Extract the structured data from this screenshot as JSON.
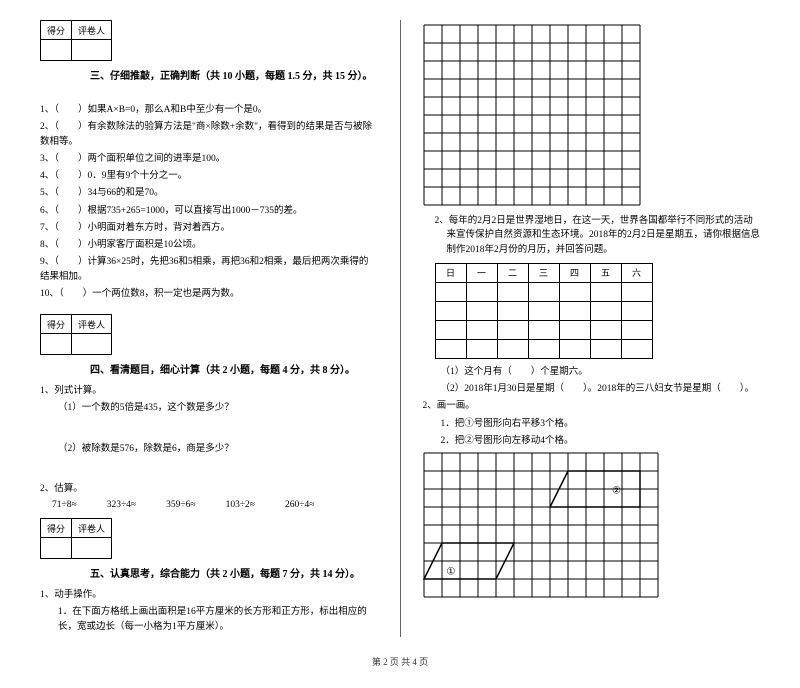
{
  "left": {
    "scoreHeaders": [
      "得分",
      "评卷人"
    ],
    "section3": {
      "title": "三、仔细推敲，正确判断（共 10 小题，每题 1.5 分，共 15 分）。",
      "items": [
        "1、（　　）如果A×B=0，那么A和B中至少有一个是0。",
        "2、（　　）有余数除法的验算方法是\"商×除数+余数\"，看得到的结果是否与被除数相等。",
        "3、（　　）两个面积单位之间的进率是100。",
        "4、（　　）0．9里有9个十分之一。",
        "5、（　　）34与66的和是70。",
        "6、（　　）根据735+265=1000，可以直接写出1000－735的差。",
        "7、（　　）小明面对着东方时，背对着西方。",
        "8、（　　）小明家客厅面积是10公顷。",
        "9、（　　）计算36×25时，先把36和5相乘，再把36和2相乘，最后把两次乘得的结果相加。",
        "10、（　　）一个两位数8，积一定也是两为数。"
      ]
    },
    "section4": {
      "title": "四、看清题目，细心计算（共 2 小题，每题 4 分，共 8 分）。",
      "q1": "1、列式计算。",
      "q1a": "（1）一个数的5倍是435，这个数是多少？",
      "q1b": "（2）被除数是576，除数是6，商是多少？",
      "q2": "2、估算。",
      "est": [
        "71÷8≈",
        "323÷4≈",
        "359÷6≈",
        "103÷2≈",
        "260÷4≈"
      ]
    },
    "section5": {
      "title": "五、认真思考，综合能力（共 2 小题，每题 7 分，共 14 分）。",
      "q1": "1、动手操作。",
      "q1a": "1．在下面方格纸上画出面积是16平方厘米的长方形和正方形，标出相应的长，宽或边长（每一小格为1平方厘米）。"
    }
  },
  "right": {
    "grid1": {
      "cols": 12,
      "rows": 10,
      "cell": 18,
      "stroke": "#000000"
    },
    "q2text": "2、每年的2月2日是世界湿地日，在这一天，世界各国都举行不同形式的活动来宣传保护自然资源和生态环境。2018年的2月2日是星期五，请你根据信息制作2018年2月份的月历，并回答问题。",
    "calHeaders": [
      "日",
      "一",
      "二",
      "三",
      "四",
      "五",
      "六"
    ],
    "sub1": "（1）这个月有（　　）个星期六。",
    "sub2": "（2）2018年1月30日是星期（　　）。2018年的三八妇女节是星期（　　）。",
    "q2b": "2、画一画。",
    "q2b1": "1．把①号图形向右平移3个格。",
    "q2b2": "2．把②号图形向左移动4个格。",
    "grid2": {
      "cols": 13,
      "rows": 8,
      "cell": 18,
      "stroke": "#000000",
      "shape2_label": "②",
      "shape1_label": "①"
    }
  },
  "footer": "第 2 页 共 4 页"
}
